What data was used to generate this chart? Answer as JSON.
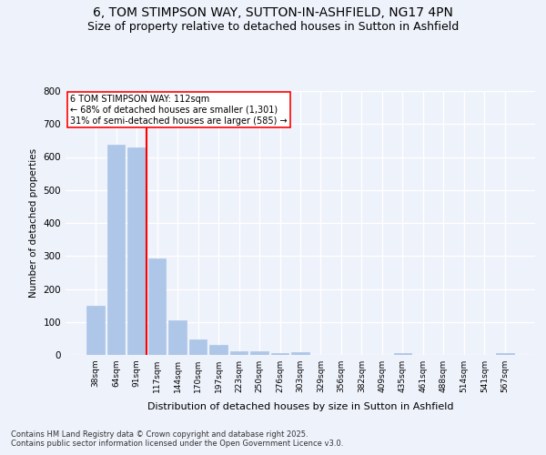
{
  "title": "6, TOM STIMPSON WAY, SUTTON-IN-ASHFIELD, NG17 4PN",
  "subtitle": "Size of property relative to detached houses in Sutton in Ashfield",
  "xlabel": "Distribution of detached houses by size in Sutton in Ashfield",
  "ylabel": "Number of detached properties",
  "categories": [
    "38sqm",
    "64sqm",
    "91sqm",
    "117sqm",
    "144sqm",
    "170sqm",
    "197sqm",
    "223sqm",
    "250sqm",
    "276sqm",
    "303sqm",
    "329sqm",
    "356sqm",
    "382sqm",
    "409sqm",
    "435sqm",
    "461sqm",
    "488sqm",
    "514sqm",
    "541sqm",
    "567sqm"
  ],
  "values": [
    150,
    638,
    630,
    293,
    105,
    47,
    30,
    11,
    11,
    5,
    8,
    0,
    0,
    0,
    0,
    5,
    0,
    0,
    0,
    0,
    5
  ],
  "bar_color": "#aec6e8",
  "bar_edgecolor": "#aec6e8",
  "vline_x": 2.5,
  "vline_color": "red",
  "annotation_text": "6 TOM STIMPSON WAY: 112sqm\n← 68% of detached houses are smaller (1,301)\n31% of semi-detached houses are larger (585) →",
  "annotation_box_color": "white",
  "annotation_box_edgecolor": "red",
  "ylim": [
    0,
    800
  ],
  "yticks": [
    0,
    100,
    200,
    300,
    400,
    500,
    600,
    700,
    800
  ],
  "footer1": "Contains HM Land Registry data © Crown copyright and database right 2025.",
  "footer2": "Contains public sector information licensed under the Open Government Licence v3.0.",
  "title_fontsize": 10,
  "subtitle_fontsize": 9,
  "background_color": "#eef2fb",
  "grid_color": "#ffffff"
}
